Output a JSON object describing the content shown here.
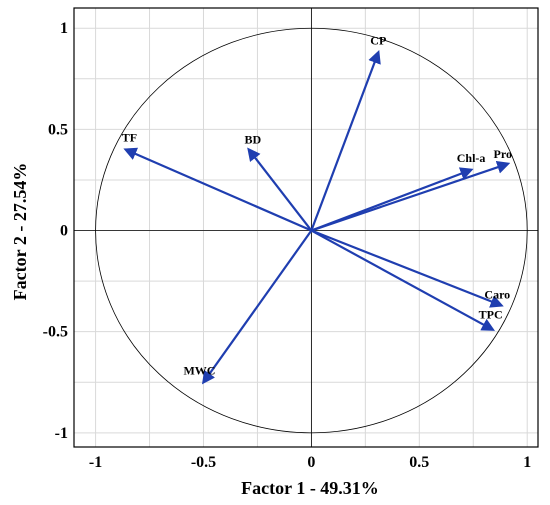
{
  "chart_data": {
    "type": "scatter",
    "subtype": "pca-correlation-circle",
    "title": "",
    "xlabel": "Factor 1 - 49.31%",
    "ylabel": "Factor 2 - 27.54%",
    "xlim": [
      -1.1,
      1.05
    ],
    "ylim": [
      -1.07,
      1.1
    ],
    "xticks": [
      -1,
      -0.5,
      0,
      0.5,
      1
    ],
    "yticks": [
      -1,
      -0.5,
      0,
      0.5,
      1
    ],
    "xtick_labels": [
      "-1",
      "-0.5",
      "0",
      "0.5",
      "1"
    ],
    "ytick_labels": [
      "-1",
      "-0.5",
      "0",
      "0.5",
      "1"
    ],
    "grid": true,
    "unit_circle": true,
    "arrow_color": "#1f3eb0",
    "vectors": [
      {
        "label": "CP",
        "x": 0.31,
        "y": 0.88
      },
      {
        "label": "TF",
        "x": -0.86,
        "y": 0.4
      },
      {
        "label": "BD",
        "x": -0.29,
        "y": 0.4
      },
      {
        "label": "Chl-a",
        "x": 0.74,
        "y": 0.3
      },
      {
        "label": "Pro",
        "x": 0.91,
        "y": 0.33
      },
      {
        "label": "Caro",
        "x": 0.88,
        "y": -0.37
      },
      {
        "label": "TPC",
        "x": 0.84,
        "y": -0.49
      },
      {
        "label": "MWC",
        "x": -0.5,
        "y": -0.75
      }
    ]
  }
}
